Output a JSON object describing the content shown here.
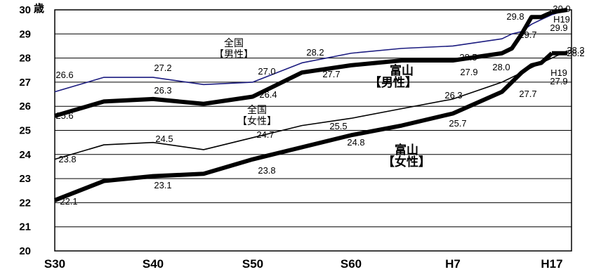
{
  "chart_data": {
    "type": "line",
    "title": "",
    "xlabel": "",
    "ylabel": "",
    "y_unit": "歳",
    "ylim": [
      20,
      30
    ],
    "y_ticks": [
      "20",
      "21",
      "22",
      "23",
      "24",
      "25",
      "26",
      "27",
      "28",
      "29",
      "30"
    ],
    "x_ticks": [
      "S30",
      "S40",
      "S50",
      "S60",
      "H7",
      "H17"
    ],
    "grid": true,
    "series": [
      {
        "name": "全国【男性】",
        "color": "#1c1c80",
        "x": [
          "S30",
          "S35",
          "S40",
          "S45",
          "S50",
          "S55",
          "S60",
          "H2",
          "H7",
          "H12",
          "H13",
          "H14",
          "H15",
          "H16",
          "H17"
        ],
        "values": [
          26.6,
          27.2,
          27.2,
          26.9,
          27.0,
          27.8,
          28.2,
          28.4,
          28.5,
          28.8,
          29.0,
          29.1,
          29.4,
          29.6,
          29.8
        ]
      },
      {
        "name": "富山【男性】",
        "color": "#000000",
        "x": [
          "S30",
          "S35",
          "S40",
          "S45",
          "S50",
          "S55",
          "S60",
          "H2",
          "H7",
          "H12",
          "H13",
          "H14",
          "H15",
          "H16",
          "H17"
        ],
        "values": [
          25.6,
          26.2,
          26.3,
          26.1,
          26.4,
          27.4,
          27.7,
          27.9,
          27.9,
          28.2,
          28.4,
          29.0,
          29.7,
          29.7,
          29.9
        ]
      },
      {
        "name": "全国【女性】",
        "color": "#000000",
        "x": [
          "S30",
          "S35",
          "S40",
          "S45",
          "S50",
          "S55",
          "S60",
          "H2",
          "H7",
          "H12",
          "H13",
          "H14",
          "H15",
          "H16",
          "H17"
        ],
        "values": [
          23.8,
          24.4,
          24.5,
          24.2,
          24.7,
          25.2,
          25.5,
          25.9,
          26.3,
          27.0,
          27.2,
          27.4,
          27.6,
          27.8,
          28.0
        ]
      },
      {
        "name": "富山【女性】",
        "color": "#000000",
        "x": [
          "S30",
          "S35",
          "S40",
          "S45",
          "S50",
          "S55",
          "S60",
          "H2",
          "H7",
          "H12",
          "H13",
          "H14",
          "H15",
          "H16",
          "H17"
        ],
        "values": [
          22.1,
          22.9,
          23.1,
          23.2,
          23.8,
          24.3,
          24.8,
          25.2,
          25.7,
          26.6,
          27.0,
          27.4,
          27.7,
          27.8,
          28.2
        ]
      }
    ],
    "data_labels": [
      "26.6",
      "27.2",
      "27.0",
      "28.2",
      "28.5",
      "29.8",
      "30.0",
      "H19",
      "29.9",
      "25.6",
      "26.3",
      "26.4",
      "27.7",
      "27.9",
      "29.7",
      "24.5",
      "24.7",
      "25.5",
      "26.3",
      "28.0",
      "28.3",
      "28.2",
      "23.8",
      "22.1",
      "23.1",
      "23.8",
      "24.8",
      "25.7",
      "27.7",
      "H19",
      "27.9"
    ],
    "annotations": {
      "zenkoku_male_1": "全国",
      "zenkoku_male_2": "【男性】",
      "toyama_male_1": "富山",
      "toyama_male_2": "【男性】",
      "zenkoku_female_1": "全国",
      "zenkoku_female_2": "【女性】",
      "toyama_female_1": "富山",
      "toyama_female_2": "【女性】"
    }
  }
}
